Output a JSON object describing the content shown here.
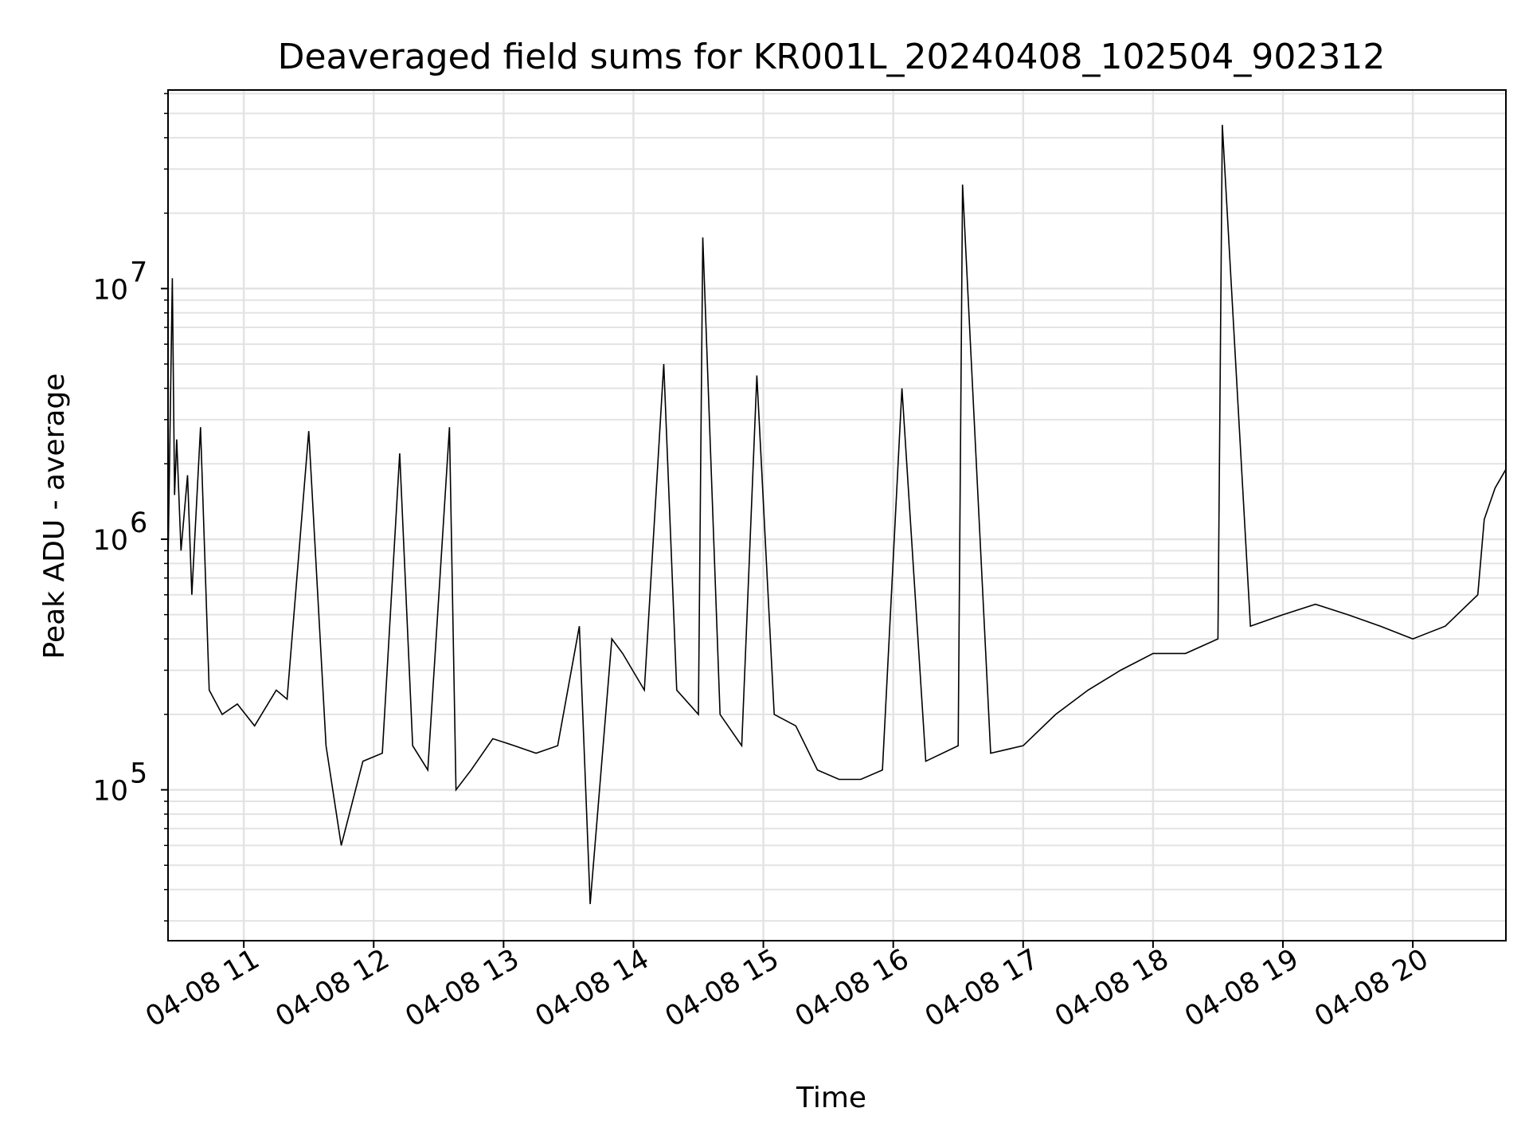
{
  "chart_data": {
    "type": "line",
    "title": "Deaveraged field sums for KR001L_20240408_102504_902312",
    "xlabel": "Time",
    "ylabel": "Peak ADU - average",
    "x_type": "datetime",
    "y_scale": "log",
    "xlim": [
      "2024-04-08 10:25",
      "2024-04-08 20:43"
    ],
    "ylim": [
      25000,
      62000000
    ],
    "grid": true,
    "grid_minor": true,
    "line_color": "#000000",
    "x_ticks": [
      {
        "value": "2024-04-08 11:00",
        "label": "04-08 11"
      },
      {
        "value": "2024-04-08 12:00",
        "label": "04-08 12"
      },
      {
        "value": "2024-04-08 13:00",
        "label": "04-08 13"
      },
      {
        "value": "2024-04-08 14:00",
        "label": "04-08 14"
      },
      {
        "value": "2024-04-08 15:00",
        "label": "04-08 15"
      },
      {
        "value": "2024-04-08 16:00",
        "label": "04-08 16"
      },
      {
        "value": "2024-04-08 17:00",
        "label": "04-08 17"
      },
      {
        "value": "2024-04-08 18:00",
        "label": "04-08 18"
      },
      {
        "value": "2024-04-08 19:00",
        "label": "04-08 19"
      },
      {
        "value": "2024-04-08 20:00",
        "label": "04-08 20"
      }
    ],
    "y_ticks": [
      {
        "value": 100000,
        "label": "10",
        "exp": "5"
      },
      {
        "value": 1000000,
        "label": "10",
        "exp": "6"
      },
      {
        "value": 10000000,
        "label": "10",
        "exp": "7"
      }
    ],
    "series": [
      {
        "x": [
          "2024-04-08 10:25",
          "2024-04-08 10:27",
          "2024-04-08 10:28",
          "2024-04-08 10:29",
          "2024-04-08 10:31",
          "2024-04-08 10:34",
          "2024-04-08 10:36",
          "2024-04-08 10:40",
          "2024-04-08 10:44",
          "2024-04-08 10:50",
          "2024-04-08 10:57",
          "2024-04-08 11:05",
          "2024-04-08 11:15",
          "2024-04-08 11:20",
          "2024-04-08 11:30",
          "2024-04-08 11:38",
          "2024-04-08 11:45",
          "2024-04-08 11:55",
          "2024-04-08 12:04",
          "2024-04-08 12:12",
          "2024-04-08 12:18",
          "2024-04-08 12:25",
          "2024-04-08 12:35",
          "2024-04-08 12:38",
          "2024-04-08 12:45",
          "2024-04-08 12:55",
          "2024-04-08 13:05",
          "2024-04-08 13:15",
          "2024-04-08 13:25",
          "2024-04-08 13:35",
          "2024-04-08 13:40",
          "2024-04-08 13:50",
          "2024-04-08 13:55",
          "2024-04-08 14:05",
          "2024-04-08 14:14",
          "2024-04-08 14:20",
          "2024-04-08 14:30",
          "2024-04-08 14:32",
          "2024-04-08 14:40",
          "2024-04-08 14:50",
          "2024-04-08 14:57",
          "2024-04-08 15:05",
          "2024-04-08 15:15",
          "2024-04-08 15:25",
          "2024-04-08 15:35",
          "2024-04-08 15:45",
          "2024-04-08 15:55",
          "2024-04-08 16:04",
          "2024-04-08 16:15",
          "2024-04-08 16:30",
          "2024-04-08 16:32",
          "2024-04-08 16:45",
          "2024-04-08 17:00",
          "2024-04-08 17:15",
          "2024-04-08 17:30",
          "2024-04-08 17:45",
          "2024-04-08 18:00",
          "2024-04-08 18:15",
          "2024-04-08 18:30",
          "2024-04-08 18:32",
          "2024-04-08 18:45",
          "2024-04-08 19:00",
          "2024-04-08 19:15",
          "2024-04-08 19:30",
          "2024-04-08 19:45",
          "2024-04-08 20:00",
          "2024-04-08 20:15",
          "2024-04-08 20:30",
          "2024-04-08 20:33",
          "2024-04-08 20:38",
          "2024-04-08 20:43"
        ],
        "y": [
          800000,
          11000000,
          1500000,
          2500000,
          900000,
          1800000,
          600000,
          2800000,
          250000,
          200000,
          220000,
          180000,
          250000,
          230000,
          2700000,
          150000,
          60000,
          130000,
          140000,
          2200000,
          150000,
          120000,
          2800000,
          100000,
          120000,
          160000,
          150000,
          140000,
          150000,
          450000,
          35000,
          400000,
          350000,
          250000,
          5000000,
          250000,
          200000,
          16000000,
          200000,
          150000,
          4500000,
          200000,
          180000,
          120000,
          110000,
          110000,
          120000,
          4000000,
          130000,
          150000,
          26000000,
          140000,
          150000,
          200000,
          250000,
          300000,
          350000,
          350000,
          400000,
          45000000,
          450000,
          500000,
          550000,
          500000,
          450000,
          400000,
          450000,
          600000,
          1200000,
          1600000,
          1900000
        ]
      }
    ]
  }
}
